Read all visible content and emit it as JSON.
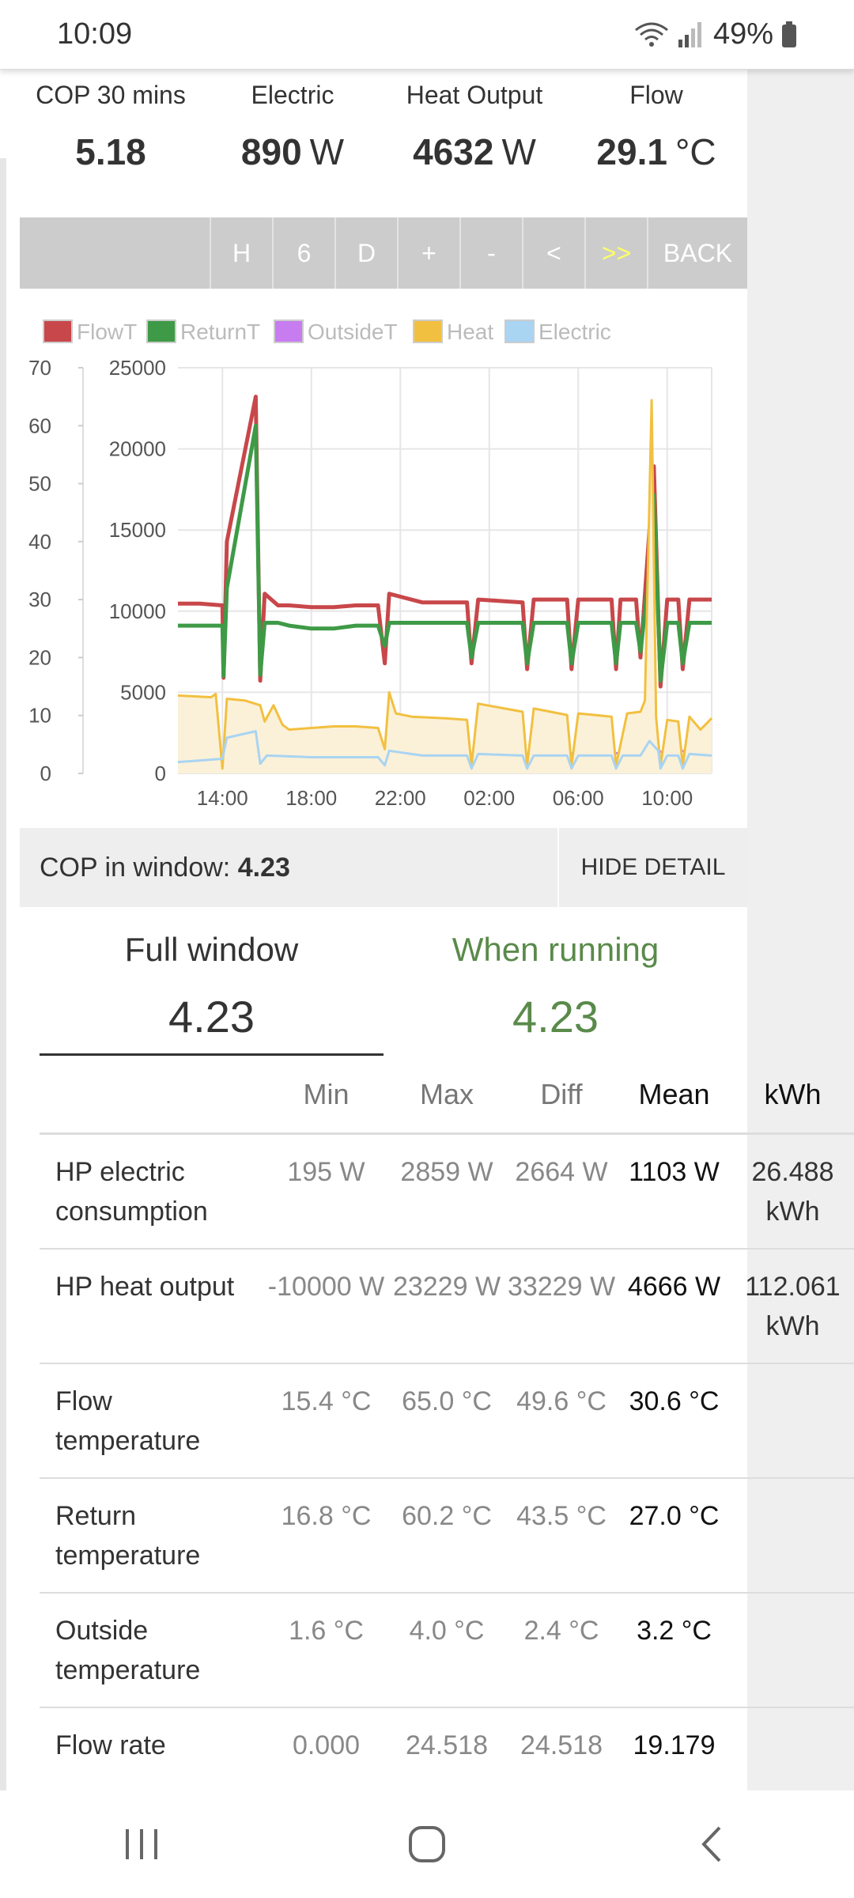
{
  "status": {
    "time": "10:09",
    "battery": "49%"
  },
  "stats": [
    {
      "label": "COP 30 mins",
      "value": "5.18",
      "unit": ""
    },
    {
      "label": "Electric",
      "value": "890",
      "unit": "W"
    },
    {
      "label": "Heat Output",
      "value": "4632",
      "unit": "W"
    },
    {
      "label": "Flow",
      "value": "29.1",
      "unit": "°C"
    }
  ],
  "toolbar": {
    "buttons": [
      "H",
      "6",
      "D",
      "+",
      "-",
      "<",
      ">>",
      "BACK"
    ]
  },
  "chart_data": {
    "type": "line",
    "legend": [
      {
        "name": "FlowT",
        "color": "#c8474a"
      },
      {
        "name": "ReturnT",
        "color": "#3e9a46"
      },
      {
        "name": "OutsideT",
        "color": "#c77cf0"
      },
      {
        "name": "Heat",
        "color": "#f2c040"
      },
      {
        "name": "Electric",
        "color": "#a9d4f2"
      }
    ],
    "x_ticks": [
      "14:00",
      "18:00",
      "22:00",
      "02:00",
      "06:00",
      "10:00"
    ],
    "y_left_ticks": [
      0,
      10,
      20,
      30,
      40,
      50,
      60,
      70
    ],
    "y_right_ticks": [
      0,
      5000,
      10000,
      15000,
      20000,
      25000
    ],
    "ylim_left": [
      0,
      70
    ],
    "ylim_right": [
      0,
      25000
    ],
    "series": [
      {
        "name": "FlowT",
        "axis": "left",
        "color": "#c8474a",
        "points": [
          [
            0,
            29.3
          ],
          [
            1,
            29.3
          ],
          [
            2,
            29
          ],
          [
            2.05,
            16.5
          ],
          [
            2.2,
            40
          ],
          [
            3.5,
            65
          ],
          [
            3.7,
            16
          ],
          [
            3.9,
            31
          ],
          [
            4.5,
            29
          ],
          [
            5,
            29
          ],
          [
            6,
            28.7
          ],
          [
            7,
            28.7
          ],
          [
            8,
            29
          ],
          [
            9,
            29
          ],
          [
            9.3,
            19
          ],
          [
            9.5,
            31
          ],
          [
            11,
            29.5
          ],
          [
            12,
            29.5
          ],
          [
            13,
            29.5
          ],
          [
            13.2,
            19
          ],
          [
            13.5,
            30
          ],
          [
            15.5,
            29.5
          ],
          [
            15.7,
            18
          ],
          [
            16,
            30
          ],
          [
            17.5,
            30
          ],
          [
            17.7,
            18
          ],
          [
            18,
            30
          ],
          [
            19.5,
            30
          ],
          [
            19.7,
            18
          ],
          [
            19.9,
            30
          ],
          [
            20.6,
            30
          ],
          [
            20.8,
            20
          ],
          [
            21.2,
            42
          ],
          [
            21.4,
            53
          ],
          [
            21.7,
            15
          ],
          [
            22,
            30
          ],
          [
            22.5,
            30
          ],
          [
            22.7,
            18
          ],
          [
            23,
            30
          ],
          [
            24,
            30
          ]
        ]
      },
      {
        "name": "ReturnT",
        "axis": "left",
        "color": "#3e9a46",
        "points": [
          [
            0,
            25.5
          ],
          [
            1,
            25.5
          ],
          [
            2,
            25.5
          ],
          [
            2.05,
            16.8
          ],
          [
            2.2,
            32
          ],
          [
            3.5,
            60
          ],
          [
            3.7,
            17
          ],
          [
            3.9,
            26
          ],
          [
            4.5,
            26
          ],
          [
            5,
            25.5
          ],
          [
            6,
            25
          ],
          [
            7,
            25
          ],
          [
            8,
            25.5
          ],
          [
            9,
            25.5
          ],
          [
            9.3,
            22
          ],
          [
            9.5,
            26
          ],
          [
            11,
            26
          ],
          [
            12,
            26
          ],
          [
            13,
            26
          ],
          [
            13.2,
            20
          ],
          [
            13.5,
            26
          ],
          [
            15.5,
            26
          ],
          [
            15.7,
            19
          ],
          [
            16,
            26
          ],
          [
            17.5,
            26
          ],
          [
            17.7,
            19
          ],
          [
            18,
            26
          ],
          [
            19.5,
            26
          ],
          [
            19.7,
            19
          ],
          [
            19.9,
            26
          ],
          [
            20.6,
            26
          ],
          [
            20.8,
            21
          ],
          [
            21.2,
            35
          ],
          [
            21.4,
            48
          ],
          [
            21.7,
            16
          ],
          [
            22,
            26
          ],
          [
            22.5,
            26
          ],
          [
            22.7,
            19
          ],
          [
            23,
            26
          ],
          [
            24,
            26
          ]
        ]
      },
      {
        "name": "OutsideT",
        "axis": "left",
        "color": "#c77cf0",
        "points": [
          [
            0,
            2
          ],
          [
            2,
            2.2
          ],
          [
            4,
            3
          ],
          [
            6,
            3.5
          ],
          [
            8,
            3.5
          ],
          [
            10,
            3.3
          ],
          [
            12,
            3.3
          ],
          [
            14,
            3.3
          ],
          [
            16,
            3.3
          ],
          [
            18,
            3.5
          ],
          [
            20,
            3.5
          ],
          [
            22,
            3.8
          ],
          [
            24,
            4
          ]
        ]
      },
      {
        "name": "Heat",
        "axis": "right",
        "color": "#f2c040",
        "fill": "#fbf1d8",
        "points": [
          [
            0,
            4800
          ],
          [
            1.5,
            4700
          ],
          [
            1.7,
            4900
          ],
          [
            2,
            300
          ],
          [
            2.2,
            4600
          ],
          [
            3,
            4500
          ],
          [
            3.7,
            4200
          ],
          [
            3.9,
            3200
          ],
          [
            4.3,
            4200
          ],
          [
            4.7,
            3000
          ],
          [
            5,
            2700
          ],
          [
            6,
            2800
          ],
          [
            7,
            2900
          ],
          [
            8,
            2900
          ],
          [
            9,
            2800
          ],
          [
            9.3,
            1500
          ],
          [
            9.5,
            5000
          ],
          [
            9.8,
            3700
          ],
          [
            10.5,
            3500
          ],
          [
            12,
            3400
          ],
          [
            13,
            3300
          ],
          [
            13.2,
            500
          ],
          [
            13.5,
            4300
          ],
          [
            15.5,
            3800
          ],
          [
            15.7,
            500
          ],
          [
            16,
            4000
          ],
          [
            17.5,
            3600
          ],
          [
            17.7,
            500
          ],
          [
            18,
            3700
          ],
          [
            19.5,
            3500
          ],
          [
            19.7,
            500
          ],
          [
            20.2,
            3700
          ],
          [
            20.8,
            3800
          ],
          [
            21,
            4500
          ],
          [
            21.3,
            23000
          ],
          [
            21.5,
            3500
          ],
          [
            21.7,
            500
          ],
          [
            22,
            3300
          ],
          [
            22.5,
            3200
          ],
          [
            22.7,
            500
          ],
          [
            23,
            3500
          ],
          [
            23.5,
            2700
          ],
          [
            24,
            3400
          ]
        ]
      },
      {
        "name": "Electric",
        "axis": "right",
        "color": "#a9d4f2",
        "points": [
          [
            0,
            700
          ],
          [
            1,
            800
          ],
          [
            2,
            900
          ],
          [
            2.2,
            2200
          ],
          [
            3.5,
            2600
          ],
          [
            3.7,
            600
          ],
          [
            4,
            1100
          ],
          [
            6,
            1000
          ],
          [
            8,
            1000
          ],
          [
            9,
            1000
          ],
          [
            9.3,
            500
          ],
          [
            9.5,
            1400
          ],
          [
            11,
            1100
          ],
          [
            13,
            1100
          ],
          [
            13.2,
            300
          ],
          [
            13.5,
            1200
          ],
          [
            15.5,
            1100
          ],
          [
            15.7,
            300
          ],
          [
            16,
            1100
          ],
          [
            17.5,
            1100
          ],
          [
            17.7,
            300
          ],
          [
            18,
            1100
          ],
          [
            19.5,
            1100
          ],
          [
            19.7,
            300
          ],
          [
            20,
            1100
          ],
          [
            20.8,
            1100
          ],
          [
            21.2,
            2000
          ],
          [
            21.6,
            1400
          ],
          [
            21.7,
            300
          ],
          [
            22,
            1100
          ],
          [
            22.5,
            1100
          ],
          [
            22.7,
            300
          ],
          [
            23,
            1200
          ],
          [
            24,
            1100
          ]
        ]
      }
    ]
  },
  "cop_bar": {
    "label": "COP in window:",
    "value": "4.23",
    "hide_label": "HIDE DETAIL"
  },
  "tabs": [
    {
      "label": "Full window",
      "value": "4.23"
    },
    {
      "label": "When running",
      "value": "4.23"
    }
  ],
  "table": {
    "headers": [
      "",
      "Min",
      "Max",
      "Diff",
      "Mean",
      "kWh"
    ],
    "rows": [
      {
        "label": "HP electric consumption",
        "min": "195 W",
        "max": "2859 W",
        "diff": "2664 W",
        "mean": "1103 W",
        "kwh": "26.488 kWh"
      },
      {
        "label": "HP heat output",
        "min": "-10000 W",
        "max": "23229 W",
        "diff": "33229 W",
        "mean": "4666 W",
        "kwh": "112.061 kWh"
      },
      {
        "label": "Flow temperature",
        "min": "15.4 °C",
        "max": "65.0 °C",
        "diff": "49.6 °C",
        "mean": "30.6 °C",
        "kwh": ""
      },
      {
        "label": "Return temperature",
        "min": "16.8 °C",
        "max": "60.2 °C",
        "diff": "43.5 °C",
        "mean": "27.0 °C",
        "kwh": ""
      },
      {
        "label": "Outside temperature",
        "min": "1.6 °C",
        "max": "4.0 °C",
        "diff": "2.4 °C",
        "mean": "3.2 °C",
        "kwh": ""
      },
      {
        "label": "Flow rate",
        "min": "0.000",
        "max": "24.518",
        "diff": "24.518",
        "mean": "19.179",
        "kwh": ""
      }
    ]
  }
}
